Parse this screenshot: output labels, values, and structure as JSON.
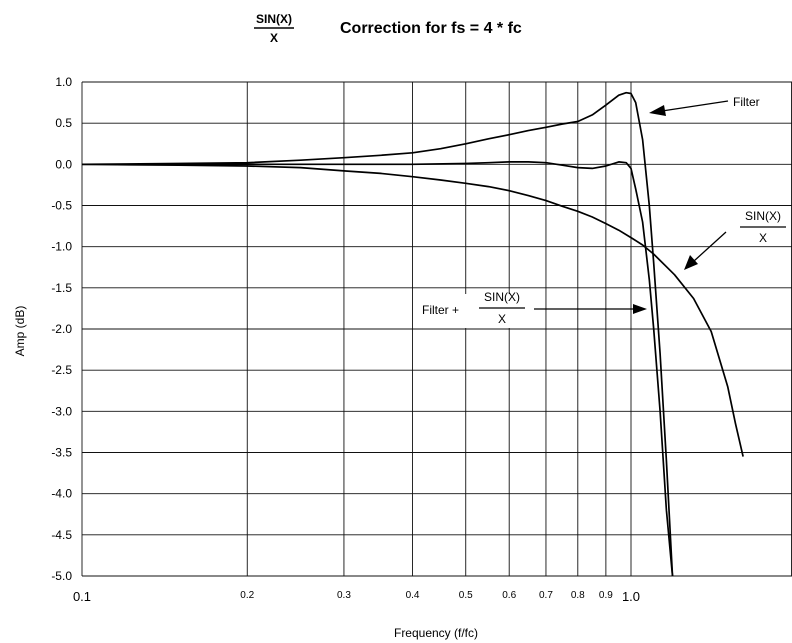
{
  "chart_data": {
    "type": "line",
    "title": {
      "fraction_num": "SIN(X)",
      "fraction_den": "X",
      "text": "Correction for fs = 4 * fc"
    },
    "xlabel": "Frequency (f/fc)",
    "ylabel": "Amp (dB)",
    "x_scale": "log",
    "xlim": [
      0.1,
      1.6
    ],
    "ylim": [
      -5.0,
      1.0
    ],
    "grid": true,
    "x_ticks": [
      {
        "value": 0.1,
        "label": "0.1"
      },
      {
        "value": 0.2,
        "label": "0.2"
      },
      {
        "value": 0.3,
        "label": "0.3"
      },
      {
        "value": 0.4,
        "label": "0.4"
      },
      {
        "value": 0.5,
        "label": "0.5"
      },
      {
        "value": 0.6,
        "label": "0.6"
      },
      {
        "value": 0.7,
        "label": "0.7"
      },
      {
        "value": 0.8,
        "label": "0.8"
      },
      {
        "value": 0.9,
        "label": "0.9"
      },
      {
        "value": 1.0,
        "label": "1.0"
      }
    ],
    "y_ticks": [
      {
        "value": 1.0,
        "label": "1.0"
      },
      {
        "value": 0.5,
        "label": "0.5"
      },
      {
        "value": 0.0,
        "label": "0.0"
      },
      {
        "value": -0.5,
        "label": "-0.5"
      },
      {
        "value": -1.0,
        "label": "-1.0"
      },
      {
        "value": -1.5,
        "label": "-1.5"
      },
      {
        "value": -2.0,
        "label": "-2.0"
      },
      {
        "value": -2.5,
        "label": "-2.5"
      },
      {
        "value": -3.0,
        "label": "-3.0"
      },
      {
        "value": -3.5,
        "label": "-3.5"
      },
      {
        "value": -4.0,
        "label": "-4.0"
      },
      {
        "value": -4.5,
        "label": "-4.5"
      },
      {
        "value": -5.0,
        "label": "-5.0"
      }
    ],
    "series": [
      {
        "annotation": "Filter",
        "points": [
          [
            0.1,
            0.0
          ],
          [
            0.15,
            0.01
          ],
          [
            0.2,
            0.02
          ],
          [
            0.25,
            0.05
          ],
          [
            0.3,
            0.08
          ],
          [
            0.35,
            0.11
          ],
          [
            0.4,
            0.14
          ],
          [
            0.45,
            0.19
          ],
          [
            0.5,
            0.25
          ],
          [
            0.55,
            0.31
          ],
          [
            0.6,
            0.36
          ],
          [
            0.65,
            0.41
          ],
          [
            0.7,
            0.45
          ],
          [
            0.75,
            0.49
          ],
          [
            0.8,
            0.52
          ],
          [
            0.85,
            0.6
          ],
          [
            0.9,
            0.72
          ],
          [
            0.95,
            0.84
          ],
          [
            0.98,
            0.87
          ],
          [
            1.0,
            0.86
          ],
          [
            1.02,
            0.75
          ],
          [
            1.05,
            0.3
          ],
          [
            1.08,
            -0.5
          ],
          [
            1.1,
            -1.2
          ],
          [
            1.13,
            -2.3
          ],
          [
            1.16,
            -3.6
          ],
          [
            1.19,
            -5.0
          ]
        ]
      },
      {
        "annotation": "SIN(X)/X",
        "points": [
          [
            0.1,
            0.0
          ],
          [
            0.15,
            -0.01
          ],
          [
            0.2,
            -0.02
          ],
          [
            0.25,
            -0.04
          ],
          [
            0.3,
            -0.08
          ],
          [
            0.35,
            -0.11
          ],
          [
            0.4,
            -0.15
          ],
          [
            0.45,
            -0.19
          ],
          [
            0.5,
            -0.23
          ],
          [
            0.55,
            -0.27
          ],
          [
            0.6,
            -0.32
          ],
          [
            0.65,
            -0.38
          ],
          [
            0.7,
            -0.44
          ],
          [
            0.75,
            -0.51
          ],
          [
            0.8,
            -0.57
          ],
          [
            0.85,
            -0.64
          ],
          [
            0.9,
            -0.72
          ],
          [
            0.95,
            -0.8
          ],
          [
            1.0,
            -0.89
          ],
          [
            1.05,
            -0.98
          ],
          [
            1.1,
            -1.09
          ],
          [
            1.2,
            -1.34
          ],
          [
            1.3,
            -1.63
          ],
          [
            1.4,
            -2.03
          ],
          [
            1.5,
            -2.7
          ],
          [
            1.55,
            -3.15
          ],
          [
            1.6,
            -3.55
          ]
        ]
      },
      {
        "annotation": "Filter + SIN(X)/X",
        "points": [
          [
            0.1,
            0.0
          ],
          [
            0.2,
            0.0
          ],
          [
            0.3,
            0.0
          ],
          [
            0.4,
            0.0
          ],
          [
            0.5,
            0.01
          ],
          [
            0.55,
            0.02
          ],
          [
            0.6,
            0.03
          ],
          [
            0.65,
            0.03
          ],
          [
            0.7,
            0.02
          ],
          [
            0.75,
            -0.01
          ],
          [
            0.8,
            -0.04
          ],
          [
            0.85,
            -0.05
          ],
          [
            0.9,
            -0.02
          ],
          [
            0.95,
            0.03
          ],
          [
            0.98,
            0.02
          ],
          [
            1.0,
            -0.05
          ],
          [
            1.02,
            -0.3
          ],
          [
            1.05,
            -0.7
          ],
          [
            1.08,
            -1.4
          ],
          [
            1.1,
            -2.0
          ],
          [
            1.13,
            -3.0
          ],
          [
            1.16,
            -4.2
          ],
          [
            1.19,
            -5.0
          ]
        ]
      }
    ],
    "annotations": {
      "filter": "Filter",
      "sinx": {
        "num": "SIN(X)",
        "den": "X"
      },
      "combined": {
        "prefix": "Filter +",
        "num": "SIN(X)",
        "den": "X"
      }
    }
  }
}
